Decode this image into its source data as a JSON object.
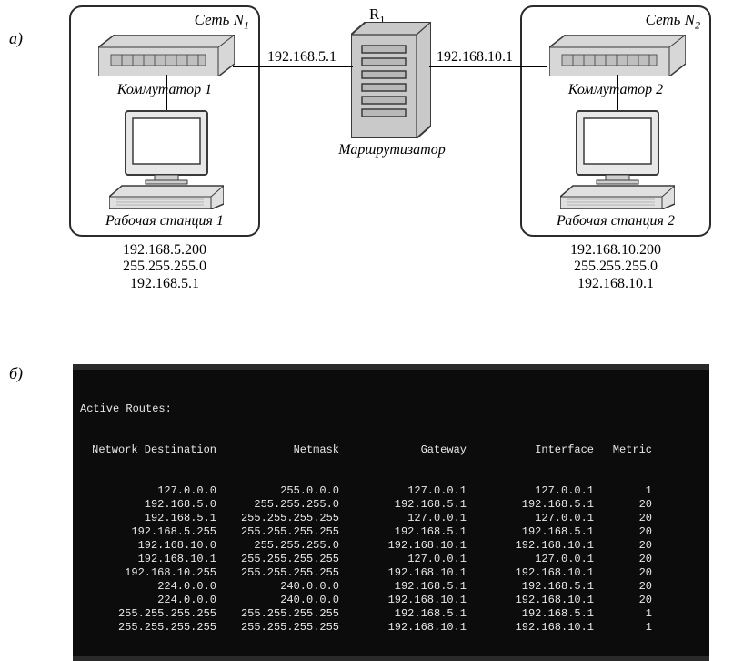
{
  "labels": {
    "part_a": "а)",
    "part_b": "б)"
  },
  "diagram": {
    "router_top": "R",
    "router_top_sub": "1",
    "router_caption": "Маршрутизатор",
    "link_left_ip": "192.168.5.1",
    "link_right_ip": "192.168.10.1",
    "left": {
      "net_title": "Сеть N",
      "net_sub": "1",
      "switch_label": "Коммутатор 1",
      "ws_label": "Рабочая станция 1",
      "addr_ip": "192.168.5.200",
      "addr_mask": "255.255.255.0",
      "addr_gw": "192.168.5.1"
    },
    "right": {
      "net_title": "Сеть N",
      "net_sub": "2",
      "switch_label": "Коммутатор 2",
      "ws_label": "Рабочая станция 2",
      "addr_ip": "192.168.10.200",
      "addr_mask": "255.255.255.0",
      "addr_gw": "192.168.10.1"
    }
  },
  "routes": {
    "title": "Active Routes:",
    "headers": [
      "Network Destination",
      "Netmask",
      "Gateway",
      "Interface",
      "Metric"
    ],
    "rows": [
      [
        "127.0.0.0",
        "255.0.0.0",
        "127.0.0.1",
        "127.0.0.1",
        "1"
      ],
      [
        "192.168.5.0",
        "255.255.255.0",
        "192.168.5.1",
        "192.168.5.1",
        "20"
      ],
      [
        "192.168.5.1",
        "255.255.255.255",
        "127.0.0.1",
        "127.0.0.1",
        "20"
      ],
      [
        "192.168.5.255",
        "255.255.255.255",
        "192.168.5.1",
        "192.168.5.1",
        "20"
      ],
      [
        "192.168.10.0",
        "255.255.255.0",
        "192.168.10.1",
        "192.168.10.1",
        "20"
      ],
      [
        "192.168.10.1",
        "255.255.255.255",
        "127.0.0.1",
        "127.0.0.1",
        "20"
      ],
      [
        "192.168.10.255",
        "255.255.255.255",
        "192.168.10.1",
        "192.168.10.1",
        "20"
      ],
      [
        "224.0.0.0",
        "240.0.0.0",
        "192.168.5.1",
        "192.168.5.1",
        "20"
      ],
      [
        "224.0.0.0",
        "240.0.0.0",
        "192.168.10.1",
        "192.168.10.1",
        "20"
      ],
      [
        "255.255.255.255",
        "255.255.255.255",
        "192.168.5.1",
        "192.168.5.1",
        "1"
      ],
      [
        "255.255.255.255",
        "255.255.255.255",
        "192.168.10.1",
        "192.168.10.1",
        "1"
      ]
    ]
  },
  "style": {
    "bg": "#ffffff",
    "ink": "#1a1a1a",
    "term_bg": "#0c0c0c",
    "term_fg": "#e8e8e8",
    "device_fill": "#d7d7d7",
    "device_stroke": "#3a3a3a",
    "font_serif_pt": 16,
    "font_mono_pt": 12
  }
}
